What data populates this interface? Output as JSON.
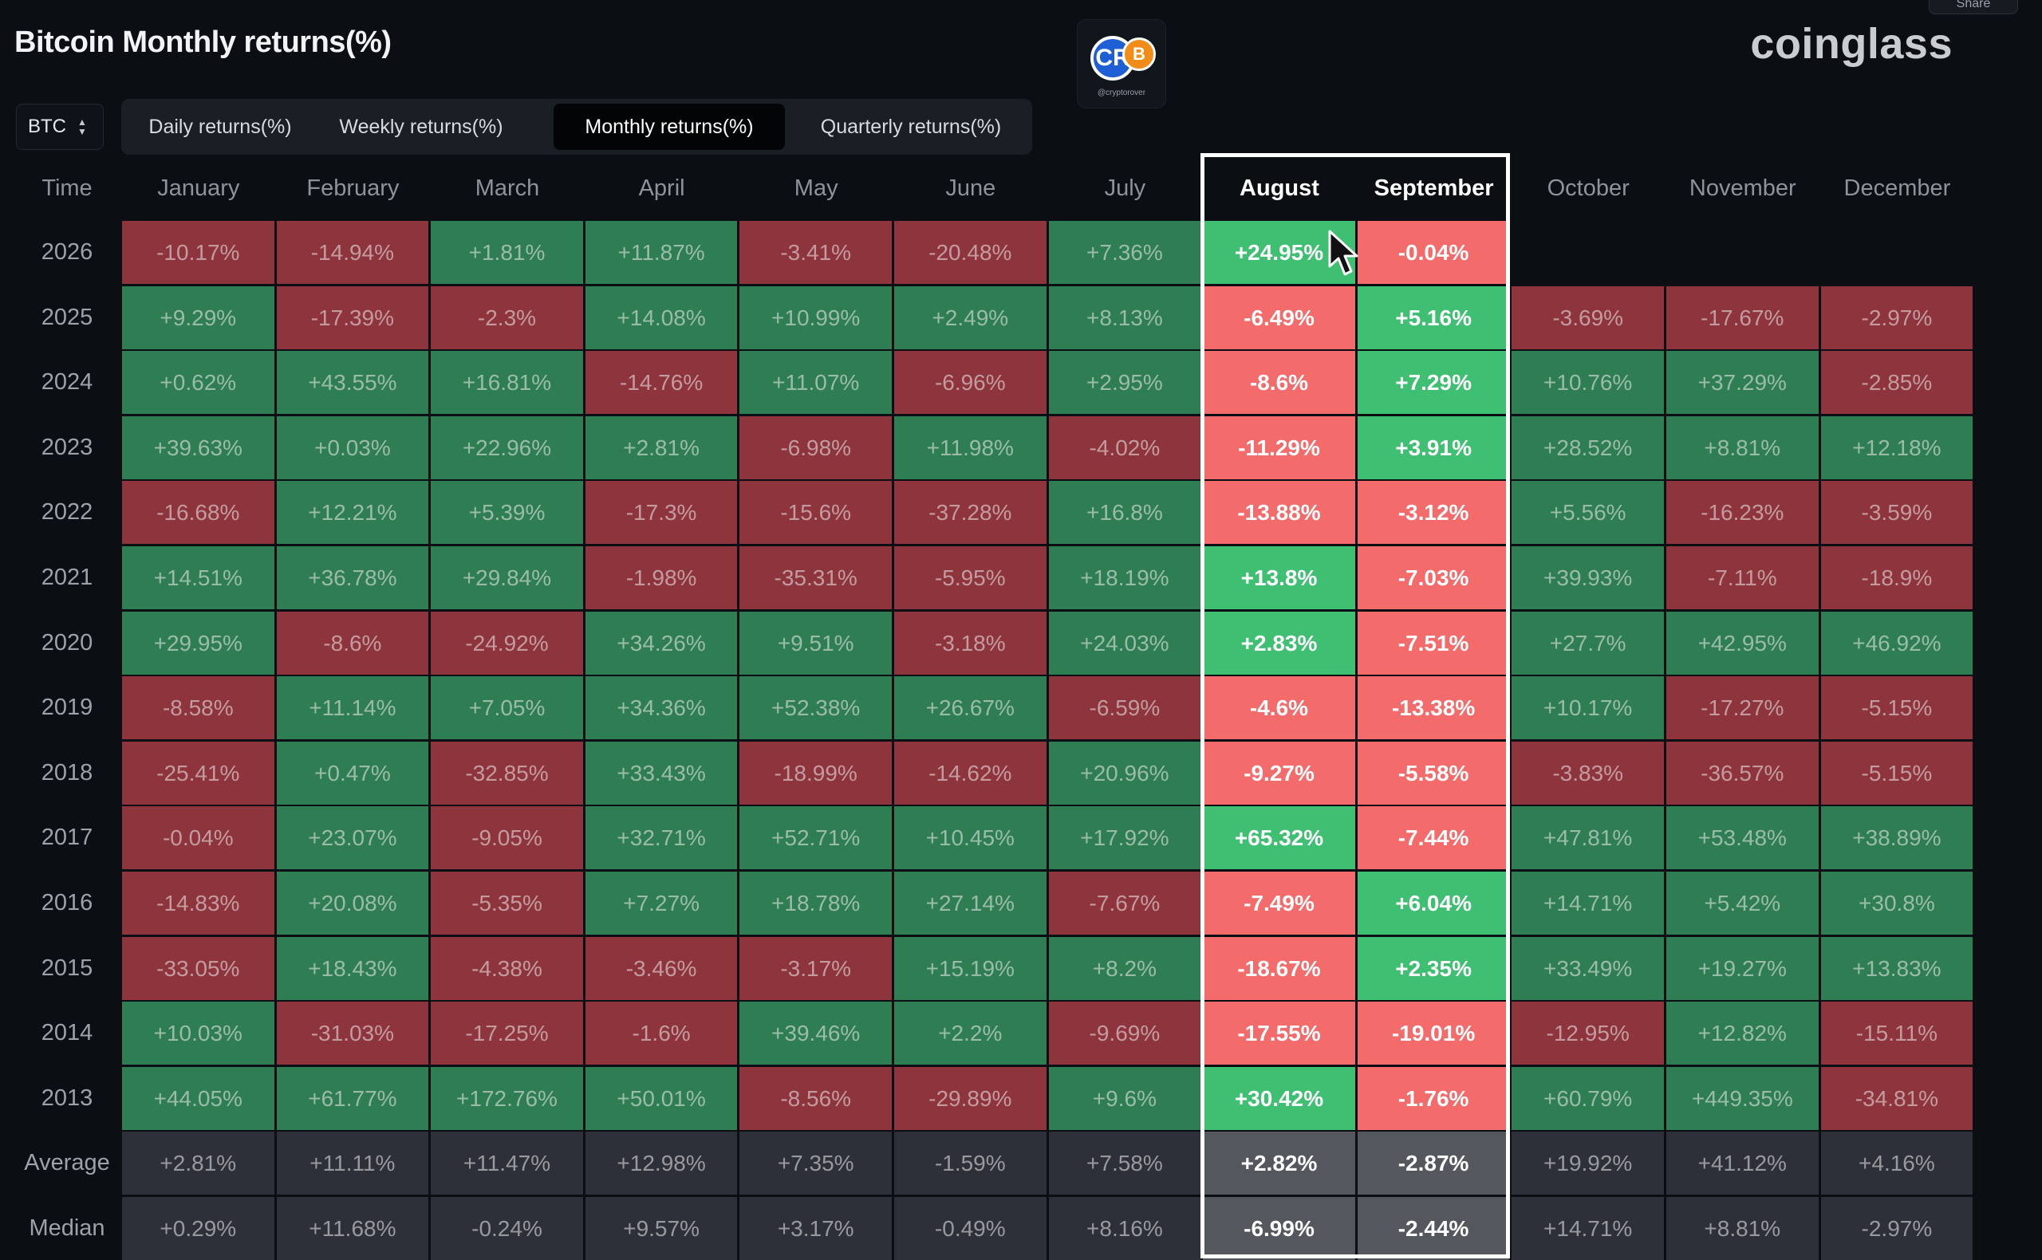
{
  "title": "Bitcoin Monthly returns(%)",
  "brand": "coinglass",
  "share_label": "Share",
  "logo": {
    "letters": "CR",
    "coin": "B",
    "tag": "@cryptorover"
  },
  "selector": {
    "value": "BTC"
  },
  "tabs": [
    {
      "label": "Daily returns(%)",
      "active": false
    },
    {
      "label": "Weekly returns(%)",
      "active": false
    },
    {
      "label": "Monthly returns(%)",
      "active": true
    },
    {
      "label": "Quarterly returns(%)",
      "active": false
    }
  ],
  "highlighted_columns": [
    "August",
    "September"
  ],
  "colors": {
    "green": "#2f7d53",
    "red": "#8d343c",
    "green_highlight": "#3fbf72",
    "red_highlight": "#f36b6b",
    "grey": "#2d3038",
    "grey_highlight": "#54575e"
  },
  "chart_data": {
    "type": "heatmap",
    "title": "Bitcoin Monthly returns(%)",
    "corner_label": "Time",
    "columns": [
      "January",
      "February",
      "March",
      "April",
      "May",
      "June",
      "July",
      "August",
      "September",
      "October",
      "November",
      "December"
    ],
    "rows": [
      {
        "label": "2026",
        "values": [
          "-10.17%",
          "-14.94%",
          "+1.81%",
          "+11.87%",
          "-3.41%",
          "-20.48%",
          "+7.36%",
          "+24.95%",
          "-0.04%",
          null,
          null,
          null
        ]
      },
      {
        "label": "2025",
        "values": [
          "+9.29%",
          "-17.39%",
          "-2.3%",
          "+14.08%",
          "+10.99%",
          "+2.49%",
          "+8.13%",
          "-6.49%",
          "+5.16%",
          "-3.69%",
          "-17.67%",
          "-2.97%"
        ]
      },
      {
        "label": "2024",
        "values": [
          "+0.62%",
          "+43.55%",
          "+16.81%",
          "-14.76%",
          "+11.07%",
          "-6.96%",
          "+2.95%",
          "-8.6%",
          "+7.29%",
          "+10.76%",
          "+37.29%",
          "-2.85%"
        ]
      },
      {
        "label": "2023",
        "values": [
          "+39.63%",
          "+0.03%",
          "+22.96%",
          "+2.81%",
          "-6.98%",
          "+11.98%",
          "-4.02%",
          "-11.29%",
          "+3.91%",
          "+28.52%",
          "+8.81%",
          "+12.18%"
        ]
      },
      {
        "label": "2022",
        "values": [
          "-16.68%",
          "+12.21%",
          "+5.39%",
          "-17.3%",
          "-15.6%",
          "-37.28%",
          "+16.8%",
          "-13.88%",
          "-3.12%",
          "+5.56%",
          "-16.23%",
          "-3.59%"
        ]
      },
      {
        "label": "2021",
        "values": [
          "+14.51%",
          "+36.78%",
          "+29.84%",
          "-1.98%",
          "-35.31%",
          "-5.95%",
          "+18.19%",
          "+13.8%",
          "-7.03%",
          "+39.93%",
          "-7.11%",
          "-18.9%"
        ]
      },
      {
        "label": "2020",
        "values": [
          "+29.95%",
          "-8.6%",
          "-24.92%",
          "+34.26%",
          "+9.51%",
          "-3.18%",
          "+24.03%",
          "+2.83%",
          "-7.51%",
          "+27.7%",
          "+42.95%",
          "+46.92%"
        ]
      },
      {
        "label": "2019",
        "values": [
          "-8.58%",
          "+11.14%",
          "+7.05%",
          "+34.36%",
          "+52.38%",
          "+26.67%",
          "-6.59%",
          "-4.6%",
          "-13.38%",
          "+10.17%",
          "-17.27%",
          "-5.15%"
        ]
      },
      {
        "label": "2018",
        "values": [
          "-25.41%",
          "+0.47%",
          "-32.85%",
          "+33.43%",
          "-18.99%",
          "-14.62%",
          "+20.96%",
          "-9.27%",
          "-5.58%",
          "-3.83%",
          "-36.57%",
          "-5.15%"
        ]
      },
      {
        "label": "2017",
        "values": [
          "-0.04%",
          "+23.07%",
          "-9.05%",
          "+32.71%",
          "+52.71%",
          "+10.45%",
          "+17.92%",
          "+65.32%",
          "-7.44%",
          "+47.81%",
          "+53.48%",
          "+38.89%"
        ]
      },
      {
        "label": "2016",
        "values": [
          "-14.83%",
          "+20.08%",
          "-5.35%",
          "+7.27%",
          "+18.78%",
          "+27.14%",
          "-7.67%",
          "-7.49%",
          "+6.04%",
          "+14.71%",
          "+5.42%",
          "+30.8%"
        ]
      },
      {
        "label": "2015",
        "values": [
          "-33.05%",
          "+18.43%",
          "-4.38%",
          "-3.46%",
          "-3.17%",
          "+15.19%",
          "+8.2%",
          "-18.67%",
          "+2.35%",
          "+33.49%",
          "+19.27%",
          "+13.83%"
        ]
      },
      {
        "label": "2014",
        "values": [
          "+10.03%",
          "-31.03%",
          "-17.25%",
          "-1.6%",
          "+39.46%",
          "+2.2%",
          "-9.69%",
          "-17.55%",
          "-19.01%",
          "-12.95%",
          "+12.82%",
          "-15.11%"
        ]
      },
      {
        "label": "2013",
        "values": [
          "+44.05%",
          "+61.77%",
          "+172.76%",
          "+50.01%",
          "-8.56%",
          "-29.89%",
          "+9.6%",
          "+30.42%",
          "-1.76%",
          "+60.79%",
          "+449.35%",
          "-34.81%"
        ]
      },
      {
        "label": "Average",
        "summary": true,
        "values": [
          "+2.81%",
          "+11.11%",
          "+11.47%",
          "+12.98%",
          "+7.35%",
          "-1.59%",
          "+7.58%",
          "+2.82%",
          "-2.87%",
          "+19.92%",
          "+41.12%",
          "+4.16%"
        ]
      },
      {
        "label": "Median",
        "summary": true,
        "values": [
          "+0.29%",
          "+11.68%",
          "-0.24%",
          "+9.57%",
          "+3.17%",
          "-0.49%",
          "+8.16%",
          "-6.99%",
          "-2.44%",
          "+14.71%",
          "+8.81%",
          "-2.97%"
        ]
      }
    ]
  }
}
